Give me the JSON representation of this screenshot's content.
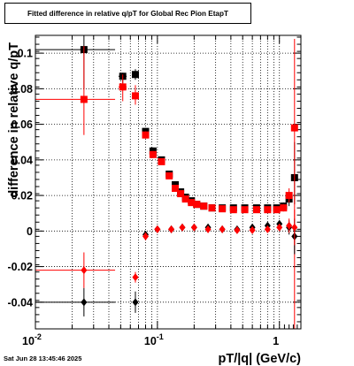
{
  "chart_data": {
    "type": "scatter",
    "title": "Fitted difference in relative q/pT for Global Rec Pion EtapT",
    "xlabel": "pT/|q| (GeV/c)",
    "ylabel": "difference in relative q/pT",
    "xscale": "log",
    "xlim": [
      0.01,
      1.5
    ],
    "ylim": [
      -0.055,
      0.11
    ],
    "grid": true,
    "yticks": [
      {
        "v": -0.04,
        "label": "-0.04"
      },
      {
        "v": -0.02,
        "label": "-0.02"
      },
      {
        "v": 0,
        "label": "0"
      },
      {
        "v": 0.02,
        "label": "0.02"
      },
      {
        "v": 0.04,
        "label": "0.04"
      },
      {
        "v": 0.06,
        "label": "0.06"
      },
      {
        "v": 0.08,
        "label": "0.08"
      },
      {
        "v": 0.1,
        "label": "0.1"
      }
    ],
    "xticks_major": [
      {
        "v": 0.01,
        "base": "10",
        "exp": "-2"
      },
      {
        "v": 0.1,
        "base": "10",
        "exp": "-1"
      },
      {
        "v": 1,
        "base": "1",
        "exp": ""
      }
    ],
    "series": [
      {
        "marker": "square",
        "color": "#000000",
        "points": [
          {
            "x": 0.025,
            "y": 0.102,
            "xerr": [
              0.015,
              0.02
            ],
            "yerr": [
              0.022,
              0.008
            ]
          },
          {
            "x": 0.052,
            "y": 0.087,
            "xerr": [
              0.004,
              0.004
            ],
            "yerr": [
              0.004,
              0.002
            ]
          },
          {
            "x": 0.066,
            "y": 0.088,
            "xerr": [
              0.003,
              0.003
            ],
            "yerr": [
              0.003,
              0.003
            ]
          },
          {
            "x": 0.08,
            "y": 0.056,
            "xerr": [
              0.003,
              0.003
            ],
            "yerr": [
              0.002,
              0.002
            ]
          },
          {
            "x": 0.092,
            "y": 0.045,
            "xerr": [
              0.002,
              0.002
            ],
            "yerr": [
              0.002,
              0.002
            ]
          },
          {
            "x": 0.108,
            "y": 0.04,
            "xerr": [
              0.002,
              0.002
            ],
            "yerr": [
              0.001,
              0.001
            ]
          },
          {
            "x": 0.125,
            "y": 0.032,
            "xerr": [
              0.002,
              0.002
            ],
            "yerr": [
              0.001,
              0.001
            ]
          },
          {
            "x": 0.14,
            "y": 0.026,
            "xerr": [
              0.002,
              0.002
            ],
            "yerr": [
              0.001,
              0.001
            ]
          },
          {
            "x": 0.155,
            "y": 0.022,
            "xerr": [
              0.002,
              0.002
            ],
            "yerr": [
              0.001,
              0.001
            ]
          },
          {
            "x": 0.17,
            "y": 0.019,
            "xerr": [
              0.002,
              0.002
            ],
            "yerr": [
              0.001,
              0.001
            ]
          },
          {
            "x": 0.19,
            "y": 0.017,
            "xerr": [
              0.002,
              0.002
            ],
            "yerr": [
              0.001,
              0.001
            ]
          },
          {
            "x": 0.21,
            "y": 0.015,
            "xerr": [
              0.002,
              0.002
            ],
            "yerr": [
              0.001,
              0.001
            ]
          },
          {
            "x": 0.24,
            "y": 0.014,
            "xerr": [
              0.002,
              0.002
            ],
            "yerr": [
              0.001,
              0.001
            ]
          },
          {
            "x": 0.28,
            "y": 0.013,
            "xerr": [
              0.002,
              0.002
            ],
            "yerr": [
              0.001,
              0.001
            ]
          },
          {
            "x": 0.34,
            "y": 0.013,
            "xerr": [
              0.002,
              0.002
            ],
            "yerr": [
              0.001,
              0.001
            ]
          },
          {
            "x": 0.42,
            "y": 0.013,
            "xerr": [
              0.002,
              0.002
            ],
            "yerr": [
              0.001,
              0.001
            ]
          },
          {
            "x": 0.52,
            "y": 0.013,
            "xerr": [
              0.002,
              0.002
            ],
            "yerr": [
              0.001,
              0.001
            ]
          },
          {
            "x": 0.65,
            "y": 0.013,
            "xerr": [
              0.002,
              0.002
            ],
            "yerr": [
              0.001,
              0.001
            ]
          },
          {
            "x": 0.8,
            "y": 0.013,
            "xerr": [
              0.002,
              0.002
            ],
            "yerr": [
              0.001,
              0.001
            ]
          },
          {
            "x": 0.95,
            "y": 0.013,
            "xerr": [
              0.002,
              0.002
            ],
            "yerr": [
              0.001,
              0.001
            ]
          },
          {
            "x": 1.08,
            "y": 0.014,
            "xerr": [
              0.01,
              0.01
            ],
            "yerr": [
              0.002,
              0.002
            ]
          },
          {
            "x": 1.2,
            "y": 0.018,
            "xerr": [
              0.01,
              0.01
            ],
            "yerr": [
              0.004,
              0.004
            ]
          },
          {
            "x": 1.33,
            "y": 0.03,
            "xerr": [
              0.02,
              0.02
            ],
            "yerr": [
              0.015,
              0.02
            ]
          }
        ]
      },
      {
        "marker": "square",
        "color": "#ff0000",
        "points": [
          {
            "x": 0.025,
            "y": 0.074,
            "xerr": [
              0.015,
              0.02
            ],
            "yerr": [
              0.02,
              0.03
            ]
          },
          {
            "x": 0.052,
            "y": 0.081,
            "xerr": [
              0.004,
              0.004
            ],
            "yerr": [
              0.008,
              0.007
            ]
          },
          {
            "x": 0.066,
            "y": 0.076,
            "xerr": [
              0.003,
              0.003
            ],
            "yerr": [
              0.005,
              0.006
            ]
          },
          {
            "x": 0.08,
            "y": 0.054,
            "xerr": [
              0.003,
              0.003
            ],
            "yerr": [
              0.002,
              0.002
            ]
          },
          {
            "x": 0.092,
            "y": 0.043,
            "xerr": [
              0.002,
              0.002
            ],
            "yerr": [
              0.002,
              0.002
            ]
          },
          {
            "x": 0.108,
            "y": 0.039,
            "xerr": [
              0.002,
              0.002
            ],
            "yerr": [
              0.001,
              0.001
            ]
          },
          {
            "x": 0.125,
            "y": 0.031,
            "xerr": [
              0.002,
              0.002
            ],
            "yerr": [
              0.001,
              0.001
            ]
          },
          {
            "x": 0.14,
            "y": 0.024,
            "xerr": [
              0.002,
              0.002
            ],
            "yerr": [
              0.001,
              0.001
            ]
          },
          {
            "x": 0.155,
            "y": 0.021,
            "xerr": [
              0.002,
              0.002
            ],
            "yerr": [
              0.001,
              0.001
            ]
          },
          {
            "x": 0.17,
            "y": 0.018,
            "xerr": [
              0.002,
              0.002
            ],
            "yerr": [
              0.001,
              0.001
            ]
          },
          {
            "x": 0.19,
            "y": 0.016,
            "xerr": [
              0.002,
              0.002
            ],
            "yerr": [
              0.001,
              0.001
            ]
          },
          {
            "x": 0.21,
            "y": 0.015,
            "xerr": [
              0.002,
              0.002
            ],
            "yerr": [
              0.001,
              0.001
            ]
          },
          {
            "x": 0.24,
            "y": 0.014,
            "xerr": [
              0.002,
              0.002
            ],
            "yerr": [
              0.001,
              0.001
            ]
          },
          {
            "x": 0.28,
            "y": 0.013,
            "xerr": [
              0.002,
              0.002
            ],
            "yerr": [
              0.001,
              0.001
            ]
          },
          {
            "x": 0.34,
            "y": 0.0125,
            "xerr": [
              0.002,
              0.002
            ],
            "yerr": [
              0.001,
              0.001
            ]
          },
          {
            "x": 0.42,
            "y": 0.012,
            "xerr": [
              0.002,
              0.002
            ],
            "yerr": [
              0.001,
              0.001
            ]
          },
          {
            "x": 0.52,
            "y": 0.012,
            "xerr": [
              0.002,
              0.002
            ],
            "yerr": [
              0.001,
              0.001
            ]
          },
          {
            "x": 0.65,
            "y": 0.012,
            "xerr": [
              0.002,
              0.002
            ],
            "yerr": [
              0.001,
              0.001
            ]
          },
          {
            "x": 0.8,
            "y": 0.012,
            "xerr": [
              0.002,
              0.002
            ],
            "yerr": [
              0.001,
              0.001
            ]
          },
          {
            "x": 0.95,
            "y": 0.012,
            "xerr": [
              0.002,
              0.002
            ],
            "yerr": [
              0.001,
              0.001
            ]
          },
          {
            "x": 1.08,
            "y": 0.013,
            "xerr": [
              0.01,
              0.01
            ],
            "yerr": [
              0.002,
              0.002
            ]
          },
          {
            "x": 1.2,
            "y": 0.02,
            "xerr": [
              0.01,
              0.01
            ],
            "yerr": [
              0.004,
              0.004
            ]
          },
          {
            "x": 1.33,
            "y": 0.058,
            "xerr": [
              0.02,
              0.02
            ],
            "yerr": [
              0.115,
              0.05
            ]
          }
        ]
      },
      {
        "marker": "diamond",
        "color": "#000000",
        "points": [
          {
            "x": 0.025,
            "y": -0.04,
            "xerr": [
              0.015,
              0.02
            ],
            "yerr": [
              0.008,
              0.008
            ]
          },
          {
            "x": 0.066,
            "y": -0.04,
            "xerr": [
              0.003,
              0.003
            ],
            "yerr": [
              0.006,
              0.006
            ]
          },
          {
            "x": 0.08,
            "y": -0.002,
            "xerr": [
              0.003,
              0.003
            ],
            "yerr": [
              0.002,
              0.002
            ]
          },
          {
            "x": 0.1,
            "y": 0.001,
            "xerr": [
              0.002,
              0.002
            ],
            "yerr": [
              0.001,
              0.001
            ]
          },
          {
            "x": 0.13,
            "y": 0.001,
            "xerr": [
              0.002,
              0.002
            ],
            "yerr": [
              0.001,
              0.001
            ]
          },
          {
            "x": 0.16,
            "y": 0.002,
            "xerr": [
              0.002,
              0.002
            ],
            "yerr": [
              0.001,
              0.001
            ]
          },
          {
            "x": 0.2,
            "y": 0.002,
            "xerr": [
              0.002,
              0.002
            ],
            "yerr": [
              0.001,
              0.001
            ]
          },
          {
            "x": 0.26,
            "y": 0.002,
            "xerr": [
              0.002,
              0.002
            ],
            "yerr": [
              0.001,
              0.001
            ]
          },
          {
            "x": 0.34,
            "y": 0.001,
            "xerr": [
              0.002,
              0.002
            ],
            "yerr": [
              0.001,
              0.001
            ]
          },
          {
            "x": 0.45,
            "y": 0.001,
            "xerr": [
              0.002,
              0.002
            ],
            "yerr": [
              0.001,
              0.001
            ]
          },
          {
            "x": 0.6,
            "y": 0.002,
            "xerr": [
              0.002,
              0.002
            ],
            "yerr": [
              0.001,
              0.001
            ]
          },
          {
            "x": 0.8,
            "y": 0.003,
            "xerr": [
              0.002,
              0.002
            ],
            "yerr": [
              0.001,
              0.001
            ]
          },
          {
            "x": 1.0,
            "y": 0.004,
            "xerr": [
              0.01,
              0.01
            ],
            "yerr": [
              0.002,
              0.002
            ]
          },
          {
            "x": 1.2,
            "y": 0.002,
            "xerr": [
              0.01,
              0.01
            ],
            "yerr": [
              0.004,
              0.004
            ]
          },
          {
            "x": 1.33,
            "y": -0.003,
            "xerr": [
              0.02,
              0.02
            ],
            "yerr": [
              0.01,
              0.01
            ]
          }
        ]
      },
      {
        "marker": "diamond",
        "color": "#ff0000",
        "points": [
          {
            "x": 0.025,
            "y": -0.022,
            "xerr": [
              0.015,
              0.02
            ],
            "yerr": [
              0.01,
              0.01
            ]
          },
          {
            "x": 0.066,
            "y": -0.026,
            "xerr": [
              0.003,
              0.003
            ],
            "yerr": [
              0.003,
              0.003
            ]
          },
          {
            "x": 0.08,
            "y": -0.003,
            "xerr": [
              0.003,
              0.003
            ],
            "yerr": [
              0.002,
              0.002
            ]
          },
          {
            "x": 0.1,
            "y": 0.001,
            "xerr": [
              0.002,
              0.002
            ],
            "yerr": [
              0.001,
              0.001
            ]
          },
          {
            "x": 0.13,
            "y": 0.001,
            "xerr": [
              0.002,
              0.002
            ],
            "yerr": [
              0.001,
              0.001
            ]
          },
          {
            "x": 0.16,
            "y": 0.002,
            "xerr": [
              0.002,
              0.002
            ],
            "yerr": [
              0.001,
              0.001
            ]
          },
          {
            "x": 0.2,
            "y": 0.002,
            "xerr": [
              0.002,
              0.002
            ],
            "yerr": [
              0.001,
              0.001
            ]
          },
          {
            "x": 0.26,
            "y": 0.001,
            "xerr": [
              0.002,
              0.002
            ],
            "yerr": [
              0.001,
              0.001
            ]
          },
          {
            "x": 0.34,
            "y": 0.001,
            "xerr": [
              0.002,
              0.002
            ],
            "yerr": [
              0.001,
              0.001
            ]
          },
          {
            "x": 0.45,
            "y": 0.0005,
            "xerr": [
              0.002,
              0.002
            ],
            "yerr": [
              0.001,
              0.001
            ]
          },
          {
            "x": 0.6,
            "y": 0.0005,
            "xerr": [
              0.002,
              0.002
            ],
            "yerr": [
              0.001,
              0.001
            ]
          },
          {
            "x": 0.8,
            "y": 0.001,
            "xerr": [
              0.002,
              0.002
            ],
            "yerr": [
              0.001,
              0.001
            ]
          },
          {
            "x": 1.0,
            "y": 0.002,
            "xerr": [
              0.01,
              0.01
            ],
            "yerr": [
              0.002,
              0.002
            ]
          },
          {
            "x": 1.2,
            "y": 0.003,
            "xerr": [
              0.01,
              0.01
            ],
            "yerr": [
              0.004,
              0.004
            ]
          },
          {
            "x": 1.33,
            "y": 0.002,
            "xerr": [
              0.02,
              0.02
            ],
            "yerr": [
              0.01,
              0.01
            ]
          }
        ]
      }
    ]
  },
  "footer": {
    "date": "Sat Jun 28 13:45:46 2025"
  }
}
